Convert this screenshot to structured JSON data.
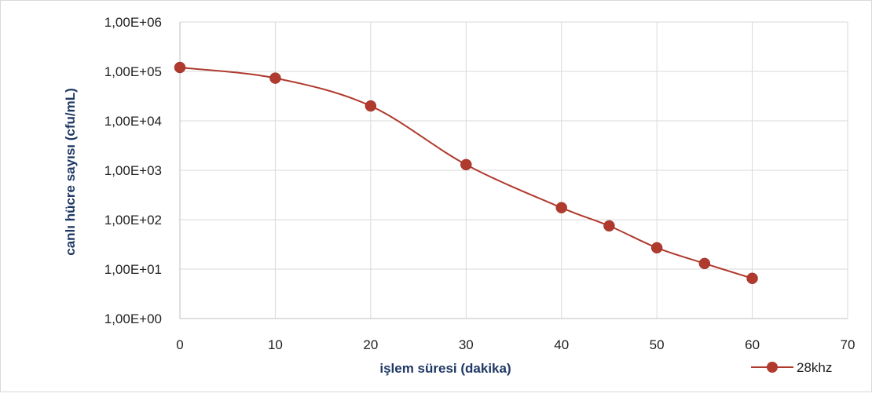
{
  "chart_data": {
    "type": "line",
    "title": "",
    "xlabel": "işlem süresi (dakika)",
    "ylabel": "canlı hücre sayısı (cfu/mL)",
    "x_scale": "linear",
    "y_scale": "log",
    "xlim": [
      0,
      70
    ],
    "ylim": [
      1,
      1000000
    ],
    "x_ticks": [
      0,
      10,
      20,
      30,
      40,
      50,
      60,
      70
    ],
    "x_tick_labels": [
      "0",
      "10",
      "20",
      "30",
      "40",
      "50",
      "60",
      "70"
    ],
    "y_ticks": [
      1,
      10,
      100,
      1000,
      10000,
      100000,
      1000000
    ],
    "y_tick_labels": [
      "1,00E+00",
      "1,00E+01",
      "1,00E+02",
      "1,00E+03",
      "1,00E+04",
      "1,00E+05",
      "1,00E+06"
    ],
    "grid": true,
    "legend_position": "bottom-right",
    "series": [
      {
        "name": "28khz",
        "color": "#b03a2e",
        "x": [
          0,
          10,
          20,
          30,
          40,
          45,
          50,
          55,
          60
        ],
        "y": [
          120000,
          73000,
          20000,
          1300,
          175,
          75,
          27,
          13,
          6.5
        ]
      }
    ]
  }
}
